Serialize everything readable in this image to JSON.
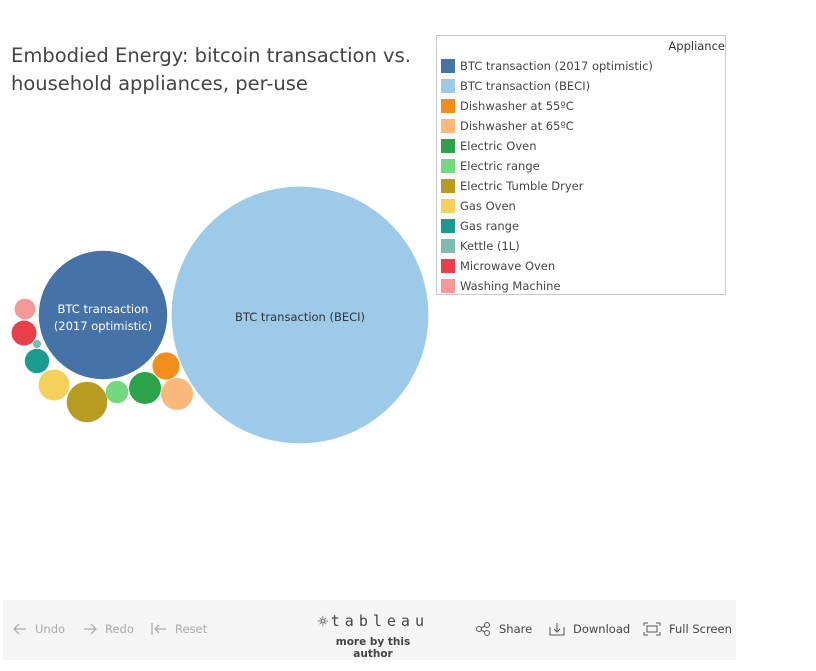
{
  "chart_data": {
    "type": "bubble",
    "title": "Embodied Energy: bitcoin transaction vs. household appliances, per-use",
    "legend_title": "Appliance",
    "legend_position": "top-right",
    "series": [
      {
        "name": "BTC transaction (2017 optimistic)",
        "color": "#4572a7",
        "value": 100,
        "label": "BTC transaction (2017 optimistic)"
      },
      {
        "name": "BTC transaction (BECI)",
        "color": "#9ccae8",
        "value": 400,
        "label": "BTC transaction (BECI)"
      },
      {
        "name": "Dishwasher at 55ºC",
        "color": "#f28e1c",
        "value": 4.5
      },
      {
        "name": "Dishwasher at 65ºC",
        "color": "#f8b97a",
        "value": 6.2
      },
      {
        "name": "Electric Oven",
        "color": "#2ca24b",
        "value": 6.2
      },
      {
        "name": "Electric range",
        "color": "#74d97e",
        "value": 3.1
      },
      {
        "name": "Electric Tumble Dryer",
        "color": "#b89c22",
        "value": 10
      },
      {
        "name": "Gas Oven",
        "color": "#f5d05a",
        "value": 5.8
      },
      {
        "name": "Gas range",
        "color": "#1a9a91",
        "value": 3.6
      },
      {
        "name": "Kettle (1L)",
        "color": "#7dbcb3",
        "value": 0.4
      },
      {
        "name": "Microwave Oven",
        "color": "#e8404a",
        "value": 3.8
      },
      {
        "name": "Washing Machine",
        "color": "#f59898",
        "value": 2.6
      }
    ]
  },
  "toolbar": {
    "undo": "Undo",
    "redo": "Redo",
    "reset": "Reset",
    "brand": "tableau",
    "more": "more by this author",
    "share": "Share",
    "download": "Download",
    "fullscreen": "Full Screen"
  }
}
